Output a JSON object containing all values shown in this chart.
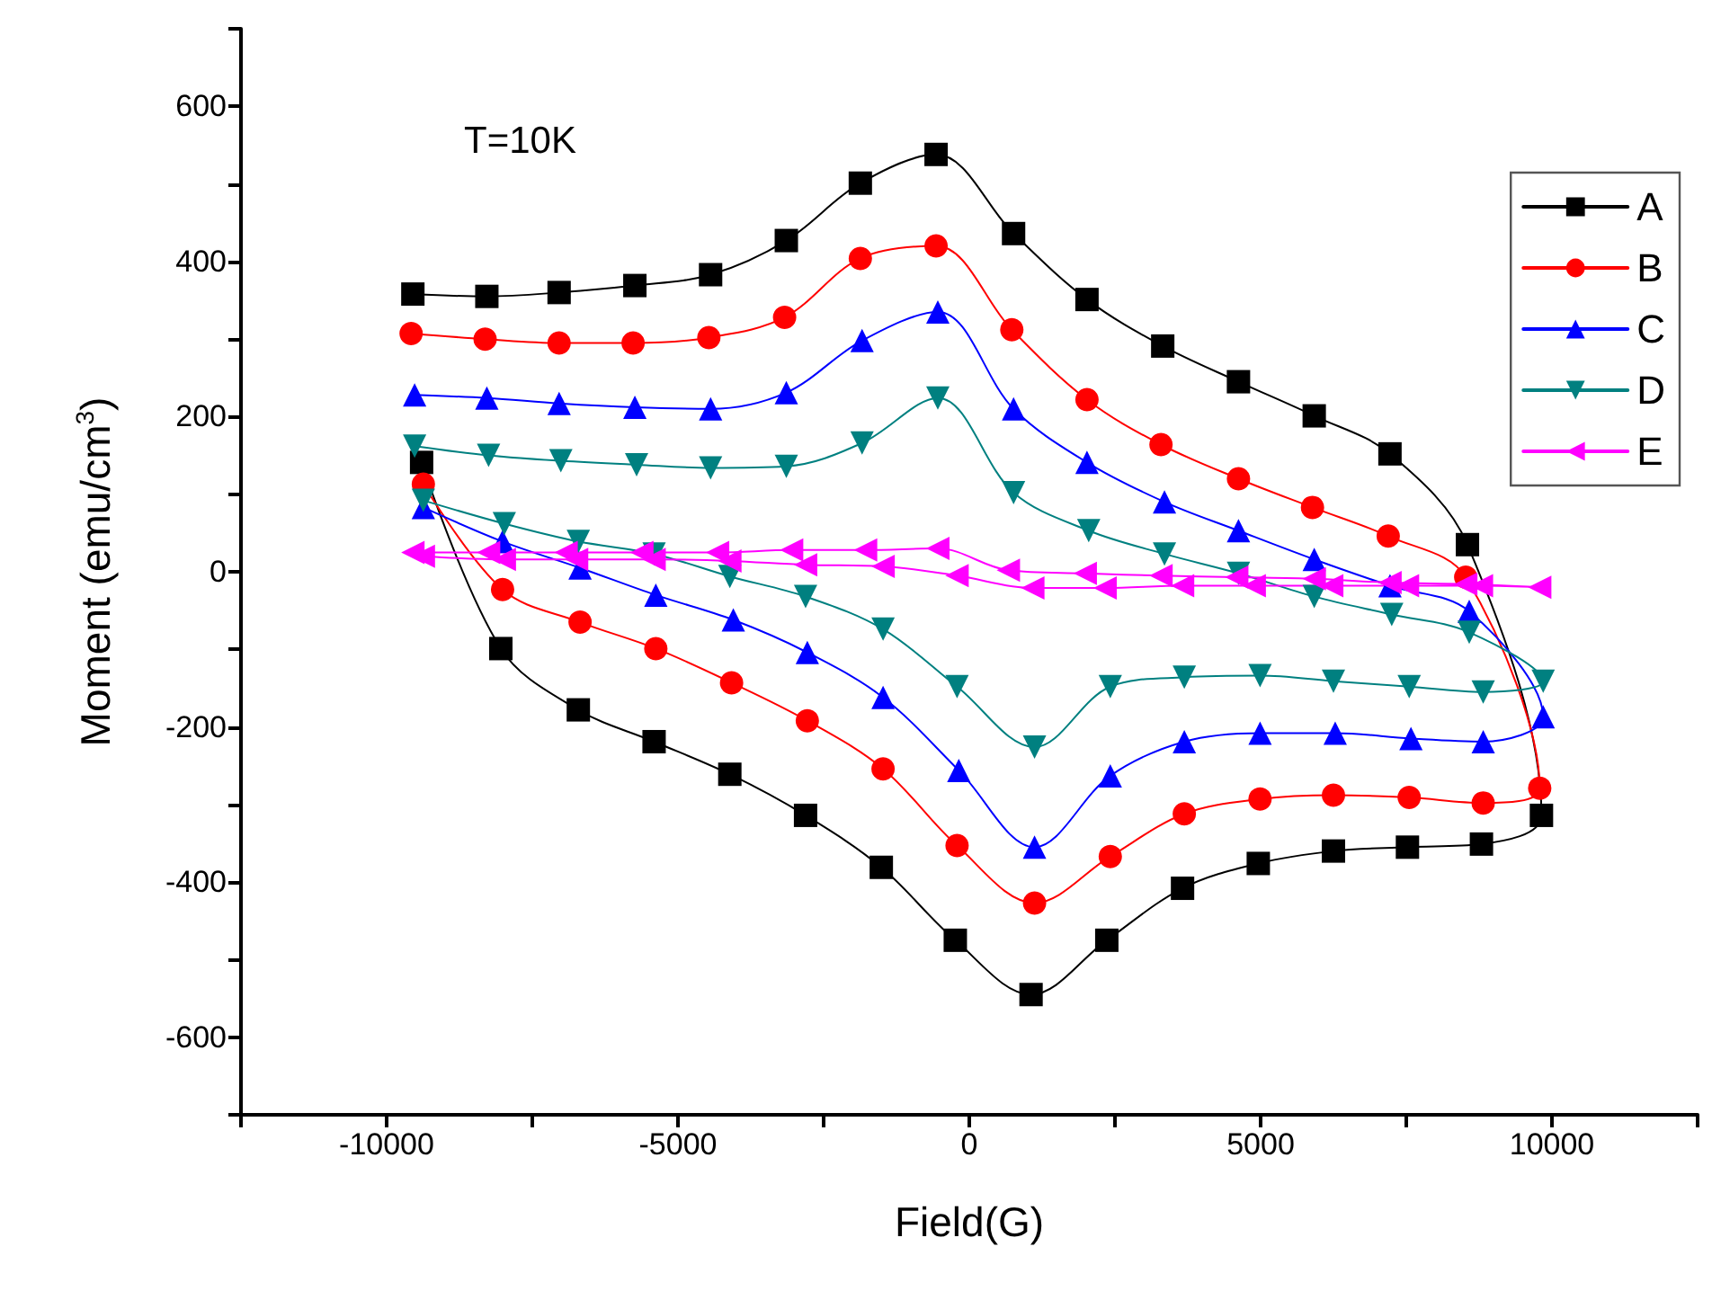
{
  "chart_data": {
    "type": "line",
    "xlabel": "Field(G)",
    "ylabel": "Moment (emu/cm$^{3}$)",
    "annotations": [
      "T=10K"
    ],
    "xlim": [
      -12500,
      12500
    ],
    "ylim": [
      -700,
      700
    ],
    "xticks": [
      {
        "value": -12500,
        "label": null
      },
      -10000,
      {
        "value": -7500,
        "label": null
      },
      -5000,
      {
        "value": -2500,
        "label": null
      },
      0,
      {
        "value": 2500,
        "label": null
      },
      5000,
      {
        "value": 7500,
        "label": null
      },
      10000,
      {
        "value": 12500,
        "label": null
      }
    ],
    "yticks": [
      {
        "value": -700,
        "label": null
      },
      -600,
      {
        "value": -500,
        "label": null
      },
      -400,
      {
        "value": -300,
        "label": null
      },
      -200,
      {
        "value": -100,
        "label": null
      },
      0,
      {
        "value": 100,
        "label": null
      },
      200,
      {
        "value": 300,
        "label": null
      },
      400,
      {
        "value": 500,
        "label": null
      },
      600,
      {
        "value": 700,
        "label": null
      }
    ],
    "grid": false,
    "legend": "top right",
    "line_style": "solid",
    "series": [
      {
        "name": "A",
        "color": "#000000",
        "marker": "square",
        "x": [
          -9550,
          -8280,
          -7040,
          -5740,
          -4440,
          -3140,
          -1870,
          -570,
          760,
          2020,
          3320,
          4620,
          5920,
          7220,
          8550,
          9820,
          8790,
          7520,
          6250,
          4960,
          3660,
          2360,
          1060,
          -240,
          -1510,
          -2810,
          -4110,
          -5410,
          -6710,
          -8040,
          -9400
        ],
        "values": [
          358,
          355,
          360,
          369,
          383,
          427,
          501,
          538,
          436,
          351,
          291,
          245,
          201,
          152,
          35,
          -314,
          -351,
          -355,
          -360,
          -376,
          -408,
          -475,
          -545,
          -475,
          -381,
          -314,
          -261,
          -219,
          -178,
          -99,
          141
        ]
      },
      {
        "name": "B",
        "color": "#ff0000",
        "marker": "circle",
        "x": [
          -9580,
          -8310,
          -7040,
          -5770,
          -4470,
          -3170,
          -1870,
          -570,
          730,
          2020,
          3290,
          4620,
          5890,
          7190,
          8520,
          9790,
          8820,
          7550,
          6250,
          4990,
          3690,
          2420,
          1120,
          -210,
          -1480,
          -2780,
          -4080,
          -5380,
          -6680,
          -8010,
          -9370
        ],
        "values": [
          307,
          300,
          295,
          295,
          302,
          328,
          404,
          420,
          312,
          222,
          164,
          120,
          83,
          46,
          -7,
          -279,
          -298,
          -291,
          -288,
          -293,
          -312,
          -367,
          -427,
          -353,
          -254,
          -192,
          -143,
          -99,
          -65,
          -23,
          113
        ]
      },
      {
        "name": "C",
        "color": "#0000ff",
        "marker": "triangle",
        "x": [
          -9520,
          -8280,
          -7040,
          -5740,
          -4440,
          -3140,
          -1840,
          -540,
          760,
          2020,
          3350,
          4620,
          5920,
          7220,
          8580,
          9850,
          8820,
          7580,
          6280,
          4990,
          3690,
          2420,
          1120,
          -180,
          -1480,
          -2780,
          -4050,
          -5380,
          -6680,
          -8010,
          -9370
        ],
        "values": [
          228,
          224,
          217,
          212,
          210,
          231,
          298,
          335,
          210,
          141,
          90,
          53,
          16,
          -18,
          -51,
          -187,
          -219,
          -215,
          -208,
          -208,
          -219,
          -263,
          -355,
          -256,
          -162,
          -104,
          -62,
          -30,
          5,
          39,
          83
        ]
      },
      {
        "name": "D",
        "color": "#008080",
        "marker": "triangle-down",
        "x": [
          -9520,
          -8250,
          -7010,
          -5710,
          -4440,
          -3140,
          -1840,
          -540,
          760,
          2050,
          3350,
          4620,
          5920,
          7250,
          8580,
          9850,
          8820,
          7550,
          6250,
          4990,
          3690,
          2420,
          1120,
          -210,
          -1480,
          -2810,
          -4110,
          -5410,
          -6710,
          -7980,
          -9370
        ],
        "values": [
          162,
          150,
          143,
          138,
          134,
          136,
          166,
          224,
          102,
          53,
          23,
          -2,
          -32,
          -55,
          -78,
          -141,
          -155,
          -148,
          -141,
          -134,
          -136,
          -148,
          -226,
          -148,
          -74,
          -32,
          -6,
          23,
          39,
          62,
          92
        ]
      },
      {
        "name": "E",
        "color": "#ff00ff",
        "marker": "triangle-left",
        "x": [
          -9550,
          -8250,
          -6920,
          -5620,
          -4320,
          -3050,
          -1780,
          -540,
          670,
          1990,
          3290,
          4590,
          5920,
          7220,
          8520,
          9790,
          8790,
          7520,
          6220,
          4890,
          3660,
          2330,
          1090,
          -210,
          -1480,
          -2810,
          -4110,
          -5410,
          -6740,
          -7980,
          -9370
        ],
        "values": [
          25,
          25,
          25,
          25,
          25,
          28,
          28,
          30,
          2,
          -2,
          -5,
          -7,
          -9,
          -14,
          -16,
          -20,
          -18,
          -18,
          -18,
          -18,
          -18,
          -21,
          -21,
          -5,
          7,
          9,
          14,
          16,
          16,
          16,
          20
        ]
      }
    ]
  }
}
